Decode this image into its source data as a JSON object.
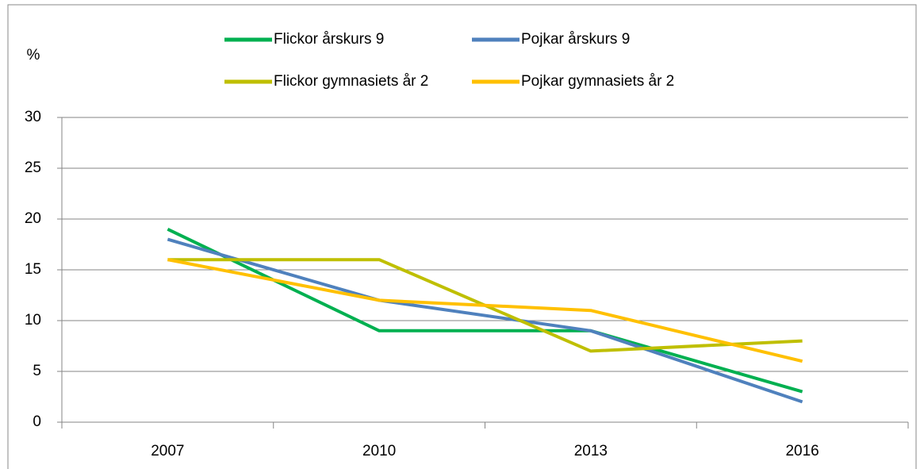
{
  "chart_data": {
    "type": "line",
    "y_label": "%",
    "categories": [
      "2007",
      "2010",
      "2013",
      "2016"
    ],
    "series": [
      {
        "name": "Flickor årskurs 9",
        "color": "#00b050",
        "values": [
          19,
          9,
          9,
          3
        ]
      },
      {
        "name": "Pojkar årskurs 9",
        "color": "#4f81bd",
        "values": [
          18,
          12,
          9,
          2
        ]
      },
      {
        "name": "Flickor gymnasiets år 2",
        "color": "#bfbf00",
        "values": [
          16,
          16,
          7,
          8
        ]
      },
      {
        "name": "Pojkar gymnasiets år 2",
        "color": "#ffc000",
        "values": [
          16,
          12,
          11,
          6
        ]
      }
    ],
    "ylim": [
      0,
      30
    ],
    "yticks": [
      0,
      5,
      10,
      15,
      20,
      25,
      30
    ],
    "grid": true,
    "legend": "top"
  }
}
